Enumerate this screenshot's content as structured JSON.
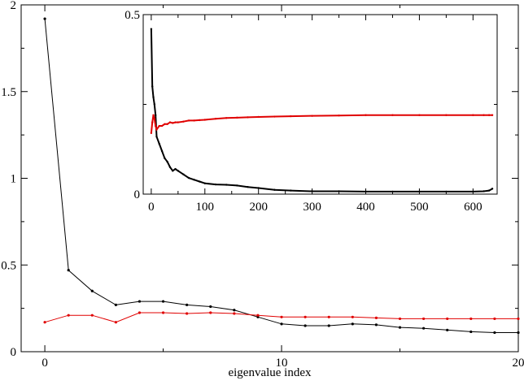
{
  "chart_data": [
    {
      "id": "main",
      "type": "line",
      "title": "",
      "xlabel": "eigenvalue index",
      "ylabel": "",
      "xlim": [
        -1,
        20
      ],
      "ylim": [
        0,
        2
      ],
      "xticks": [
        0,
        10,
        20
      ],
      "yticks": [
        0,
        0.5,
        1,
        1.5,
        2
      ],
      "x_minor_step": 5,
      "y_minor_step": 0.25,
      "grid": false,
      "legend": "none",
      "x": [
        0,
        1,
        2,
        3,
        4,
        5,
        6,
        7,
        8,
        9,
        10,
        11,
        12,
        13,
        14,
        15,
        16,
        17,
        18,
        19,
        20
      ],
      "series": [
        {
          "color": "#000000",
          "values": [
            1.92,
            0.47,
            0.35,
            0.27,
            0.29,
            0.29,
            0.27,
            0.26,
            0.24,
            0.2,
            0.16,
            0.15,
            0.15,
            0.16,
            0.155,
            0.14,
            0.135,
            0.125,
            0.115,
            0.11,
            0.11
          ]
        },
        {
          "color": "#e00000",
          "values": [
            0.17,
            0.21,
            0.21,
            0.17,
            0.225,
            0.225,
            0.22,
            0.225,
            0.22,
            0.21,
            0.2,
            0.2,
            0.2,
            0.2,
            0.195,
            0.19,
            0.19,
            0.19,
            0.19,
            0.19,
            0.19
          ]
        }
      ]
    },
    {
      "id": "inset",
      "type": "line",
      "title": "",
      "xlabel": "",
      "ylabel": "",
      "xlim": [
        -15,
        645
      ],
      "ylim": [
        0,
        0.5
      ],
      "xticks": [
        0,
        100,
        200,
        300,
        400,
        500,
        600
      ],
      "yticks": [
        0,
        0.5
      ],
      "x_minor_step": 50,
      "y_minor_step": 0.25,
      "grid": false,
      "legend": "none",
      "x": [
        0,
        2,
        4,
        6,
        8,
        10,
        15,
        20,
        25,
        30,
        35,
        40,
        45,
        50,
        60,
        70,
        80,
        90,
        100,
        120,
        140,
        160,
        180,
        200,
        230,
        260,
        300,
        350,
        400,
        450,
        500,
        550,
        600,
        620,
        630,
        636
      ],
      "series": [
        {
          "color": "#000000",
          "values": [
            0.46,
            0.3,
            0.27,
            0.25,
            0.22,
            0.16,
            0.14,
            0.12,
            0.1,
            0.09,
            0.075,
            0.065,
            0.07,
            0.065,
            0.055,
            0.045,
            0.04,
            0.035,
            0.03,
            0.027,
            0.026,
            0.024,
            0.02,
            0.017,
            0.012,
            0.01,
            0.008,
            0.008,
            0.007,
            0.007,
            0.007,
            0.007,
            0.007,
            0.008,
            0.01,
            0.015
          ]
        },
        {
          "color": "#e00000",
          "values": [
            0.17,
            0.2,
            0.22,
            0.21,
            0.19,
            0.18,
            0.19,
            0.19,
            0.195,
            0.195,
            0.2,
            0.198,
            0.2,
            0.2,
            0.202,
            0.205,
            0.205,
            0.206,
            0.207,
            0.21,
            0.212,
            0.213,
            0.214,
            0.215,
            0.216,
            0.217,
            0.218,
            0.219,
            0.22,
            0.22,
            0.22,
            0.22,
            0.22,
            0.22,
            0.22,
            0.22
          ]
        }
      ]
    }
  ]
}
